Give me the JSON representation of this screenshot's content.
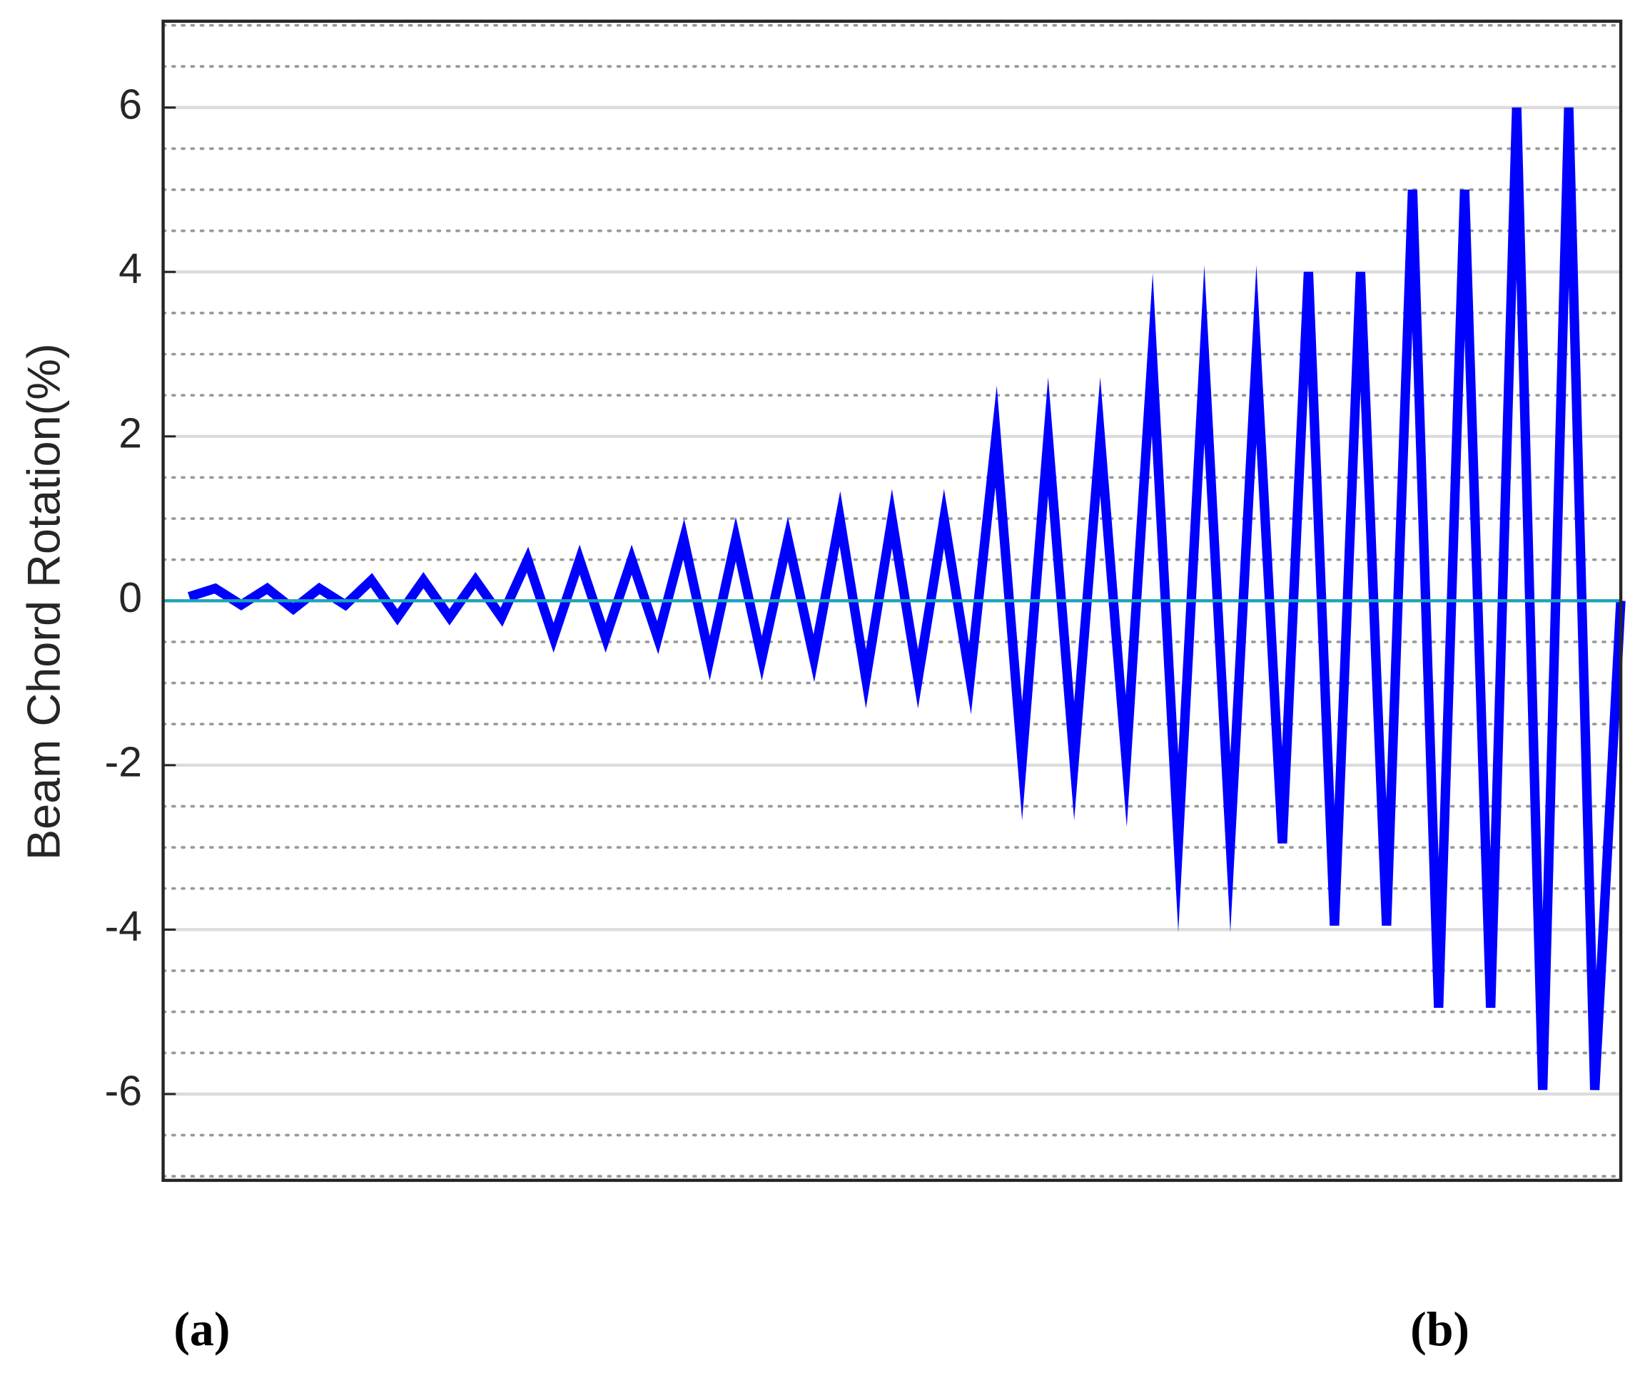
{
  "chart_data": {
    "type": "line",
    "y_label": "Beam Chord Rotation(%)",
    "x": [
      0,
      1,
      2,
      3,
      4,
      5,
      6,
      7,
      8,
      9,
      10,
      11,
      12,
      13,
      14,
      15,
      16,
      17,
      18,
      19,
      20,
      21,
      22,
      23,
      24,
      25,
      26,
      27,
      28,
      29,
      30,
      31,
      32,
      33,
      34,
      35,
      36,
      37,
      38,
      39,
      40,
      41,
      42,
      43,
      44,
      45,
      46,
      47,
      48,
      49,
      50,
      51,
      52,
      53,
      54,
      55
    ],
    "series": [
      {
        "color": "#0000ff",
        "values": [
          0.05,
          0.15,
          -0.05,
          0.15,
          -0.1,
          0.15,
          -0.05,
          0.25,
          -0.2,
          0.25,
          -0.2,
          0.25,
          -0.2,
          0.5,
          -0.45,
          0.5,
          -0.45,
          0.5,
          -0.45,
          0.75,
          -0.7,
          0.75,
          -0.7,
          0.75,
          -0.7,
          1.0,
          -0.95,
          1.0,
          -0.95,
          1.0,
          -0.95,
          2.0,
          -1.95,
          2.0,
          -1.95,
          2.0,
          -1.95,
          3.0,
          -2.95,
          3.0,
          -2.95,
          3.0,
          -2.95,
          4.0,
          -3.95,
          4.0,
          -3.95,
          5.0,
          -4.95,
          5.0,
          -4.95,
          6.0,
          -5.95,
          6.0,
          -5.95,
          0
        ]
      }
    ],
    "reference_line": {
      "value": 0,
      "color": "#1ca3b8"
    },
    "xlim": [
      -1,
      55
    ],
    "ylim": [
      -7.05,
      7.05
    ],
    "yticks": [
      -6,
      -4,
      -2,
      0,
      2,
      4,
      6
    ],
    "grid": true,
    "minor_grid": true,
    "panel_labels": [
      "(a)",
      "(b)"
    ]
  }
}
